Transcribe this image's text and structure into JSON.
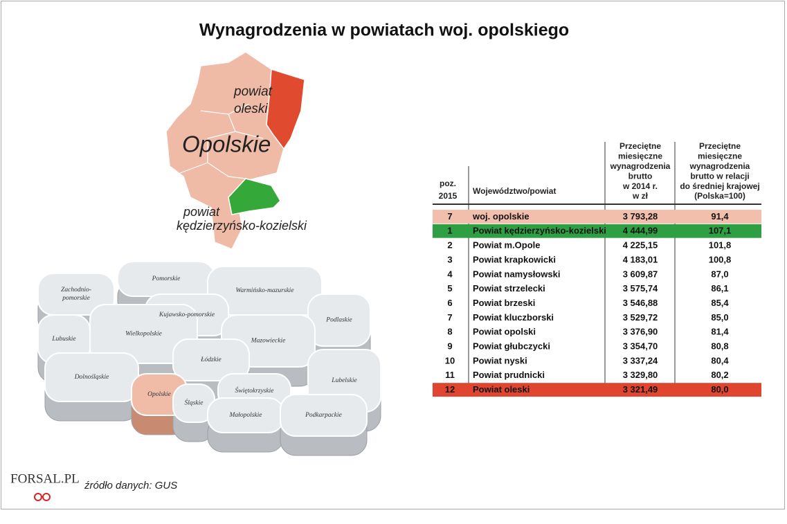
{
  "title": "Wynagrodzenia w powiatach woj. opolskiego",
  "region_map": {
    "highlight_top": [
      "powiat",
      "oleski"
    ],
    "region_name": "Opolskie",
    "highlight_bottom": [
      "powiat",
      "kędzierzyńsko-kozielski"
    ]
  },
  "poland_map": {
    "regions": [
      [
        "Zachodnio-",
        "pomorskie"
      ],
      [
        "Pomorskie"
      ],
      [
        "Warmińsko-mazurskie"
      ],
      [
        "Podlaskie"
      ],
      [
        "Kujawsko-pomorskie"
      ],
      [
        "Mazowieckie"
      ],
      [
        "Lubuskie"
      ],
      [
        "Wielkopolskie"
      ],
      [
        "Łódzkie"
      ],
      [
        "Lubelskie"
      ],
      [
        "Dolnośląskie"
      ],
      [
        "Opolskie"
      ],
      [
        "Świętokrzyskie"
      ],
      [
        "Śląskie"
      ],
      [
        "Małopolskie"
      ],
      [
        "Podkarpackie"
      ]
    ]
  },
  "table": {
    "header": [
      [
        "poz.",
        "2015"
      ],
      [
        "Województwo/powiat"
      ],
      [
        "Przeciętne",
        "miesięczne",
        "wynagrodzenia",
        "brutto",
        "w 2014 r.",
        "w zł"
      ],
      [
        "Przeciętne",
        "miesięczne",
        "wynagrodzenia",
        "brutto w relacji",
        "do średniej krajowej",
        "(Polska=100)"
      ]
    ],
    "rows": [
      [
        "7",
        "woj. opolskie",
        "3 793,28",
        "91,4"
      ],
      [
        "1",
        "Powiat kędzierzyńsko-kozielski",
        "4 444,99",
        "107,1"
      ],
      [
        "2",
        "Powiat m.Opole",
        "4 225,15",
        "101,8"
      ],
      [
        "3",
        "Powiat krapkowicki",
        "4 183,01",
        "100,8"
      ],
      [
        "4",
        "Powiat namysłowski",
        "3 609,87",
        "87,0"
      ],
      [
        "5",
        "Powiat strzelecki",
        "3 575,74",
        "86,1"
      ],
      [
        "6",
        "Powiat brzeski",
        "3 546,88",
        "85,4"
      ],
      [
        "7",
        "Powiat kluczborski",
        "3 529,72",
        "85,0"
      ],
      [
        "8",
        "Powiat opolski",
        "3 376,90",
        "81,4"
      ],
      [
        "9",
        "Powiat głubczycki",
        "3 354,70",
        "80,8"
      ],
      [
        "10",
        "Powiat nyski",
        "3 337,24",
        "80,4"
      ],
      [
        "11",
        "Powiat prudnicki",
        "3 329,80",
        "80,2"
      ],
      [
        "12",
        "Powiat oleski",
        "3 321,49",
        "80,0"
      ]
    ]
  },
  "source": "źródło danych: GUS",
  "logo": "FORSAL.PL"
}
